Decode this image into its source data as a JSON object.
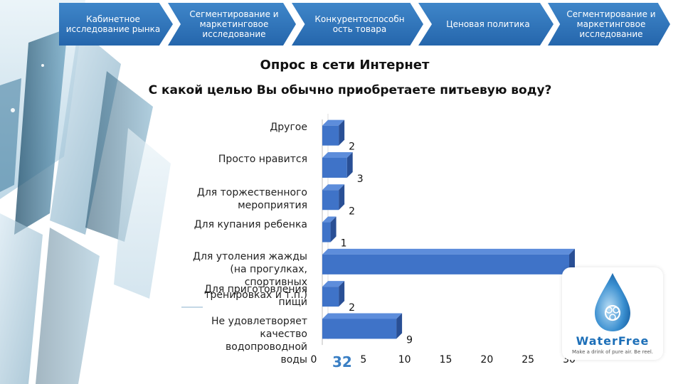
{
  "nav": {
    "items": [
      {
        "label": "Кабинетное исследование рынка"
      },
      {
        "label": "Сегментирование и маркетинговое исследование"
      },
      {
        "label": "Конкурентоспособн ость товара"
      },
      {
        "label": "Ценовая политика"
      },
      {
        "label": "Сегментирование и маркетинговое исследование"
      }
    ]
  },
  "title": "Опрос в сети Интернет",
  "question": "С какой целью Вы обычно приобретаете питьевую воду?",
  "chart_data": {
    "type": "bar",
    "orientation": "horizontal",
    "style": "3d",
    "categories": [
      "Другое",
      "Просто нравится",
      "Для торжественного мероприятия",
      "Для купания ребенка",
      "Для утоления жажды (на прогулках, спортивных тренировках и т.п.)",
      "Для приготовления пищи",
      "Не удовлетворяет качество водопроводной воды"
    ],
    "values": [
      2,
      3,
      2,
      1,
      30,
      2,
      9
    ],
    "xlim": [
      0,
      30
    ],
    "xticks": [
      0,
      5,
      10,
      15,
      20,
      25,
      30
    ],
    "bar_color": "#3f73c8",
    "grid": false,
    "legend": "none"
  },
  "page_number": "32",
  "logo": {
    "name": "WaterFree",
    "tagline": "Make a drink of pure air. Be reel."
  }
}
